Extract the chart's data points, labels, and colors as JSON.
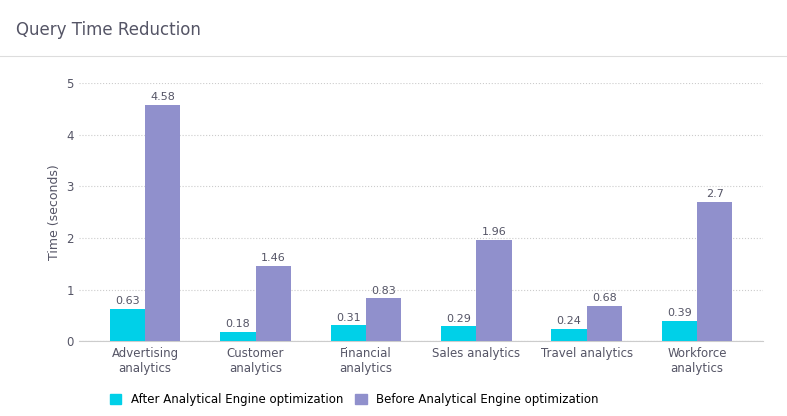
{
  "title": "Query Time Reduction",
  "ylabel": "Time (seconds)",
  "categories": [
    "Advertising\nanalytics",
    "Customer\nanalytics",
    "Financial\nanalytics",
    "Sales analytics",
    "Travel analytics",
    "Workforce\nanalytics"
  ],
  "after_values": [
    0.63,
    0.18,
    0.31,
    0.29,
    0.24,
    0.39
  ],
  "before_values": [
    4.58,
    1.46,
    0.83,
    1.96,
    0.68,
    2.7
  ],
  "after_color": "#00D0E8",
  "before_color": "#9090CC",
  "ylim": [
    0,
    5
  ],
  "yticks": [
    0,
    1,
    2,
    3,
    4,
    5
  ],
  "legend_after": "After Analytical Engine optimization",
  "legend_before": "Before Analytical Engine optimization",
  "background_color": "#ffffff",
  "title_fontsize": 12,
  "label_fontsize": 9,
  "tick_fontsize": 8.5,
  "bar_width": 0.32,
  "value_fontsize": 8
}
